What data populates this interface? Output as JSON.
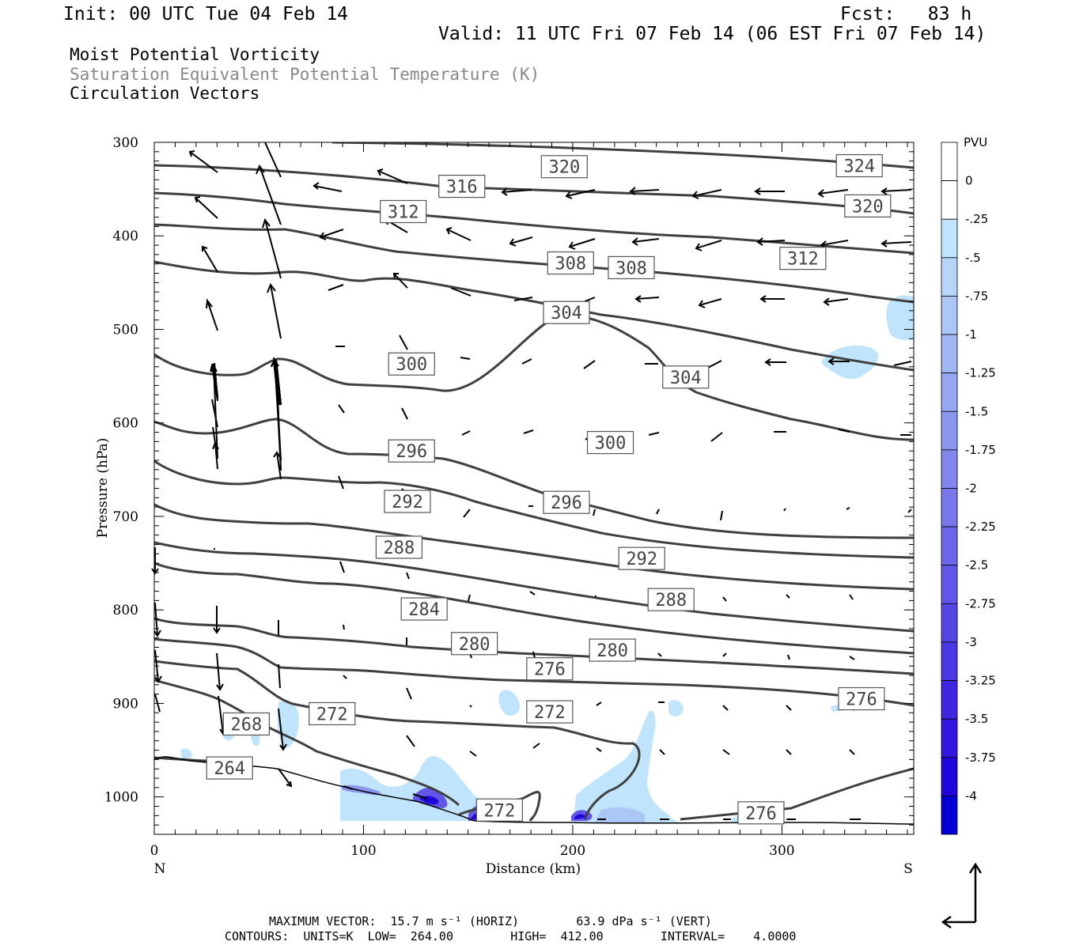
{
  "header": {
    "init": "Init: 00 UTC Tue 04 Feb 14",
    "fcst": "Fcst:   83 h",
    "valid": "Valid: 11 UTC Fri 07 Feb 14 (06 EST Fri 07 Feb 14)"
  },
  "legend_lines": [
    "Moist Potential Vorticity",
    "Saturation Equivalent Potential Temperature (K)",
    "Circulation Vectors"
  ],
  "footer": {
    "line1": "MAXIMUM VECTOR:  15.7 m s⁻¹ (HORIZ)        63.9 dPa s⁻¹ (VERT)",
    "line2": "CONTOURS:  UNITS=K  LOW=  264.00        HIGH=  412.00        INTERVAL=    4.0000"
  },
  "chart_data": {
    "type": "contour",
    "xlabel": "Distance (km)",
    "ylabel": "Pressure (hPa)",
    "x_end_labels": {
      "left": "N",
      "right": "S"
    },
    "xlim": [
      0,
      363
    ],
    "ylim": [
      1040,
      300
    ],
    "x_ticks": [
      0,
      100,
      200,
      300
    ],
    "y_ticks": [
      300,
      400,
      500,
      600,
      700,
      800,
      900,
      1000
    ],
    "colorbar": {
      "title": "PVU",
      "labels": [
        "0",
        "-.25",
        "-.5",
        "-.75",
        "-1",
        "-1.25",
        "-1.5",
        "-1.75",
        "-2",
        "-2.25",
        "-2.5",
        "-2.75",
        "-3",
        "-3.25",
        "-3.5",
        "-3.75",
        "-4"
      ],
      "colors": [
        "#ffffff",
        "#ffffff",
        "#bfe4fb",
        "#b6d6f8",
        "#acc7f6",
        "#a1b7f4",
        "#97a7f2",
        "#8c96ef",
        "#8286ed",
        "#7776eb",
        "#6c66e9",
        "#6156e7",
        "#5646e5",
        "#4b36e3",
        "#3f26e1",
        "#3316df",
        "#2006dc",
        "#0000d6"
      ]
    },
    "contour_labels": [
      {
        "value": "320",
        "x": 196,
        "p": 326
      },
      {
        "value": "324",
        "x": 337,
        "p": 325
      },
      {
        "value": "316",
        "x": 147,
        "p": 347
      },
      {
        "value": "320",
        "x": 341,
        "p": 368
      },
      {
        "value": "312",
        "x": 119,
        "p": 374
      },
      {
        "value": "312",
        "x": 310,
        "p": 424
      },
      {
        "value": "308",
        "x": 199,
        "p": 429
      },
      {
        "value": "308",
        "x": 228,
        "p": 434
      },
      {
        "value": "304",
        "x": 197,
        "p": 482
      },
      {
        "value": "304",
        "x": 254,
        "p": 551
      },
      {
        "value": "300",
        "x": 123,
        "p": 537
      },
      {
        "value": "300",
        "x": 218,
        "p": 621
      },
      {
        "value": "296",
        "x": 123,
        "p": 630
      },
      {
        "value": "296",
        "x": 197,
        "p": 685
      },
      {
        "value": "292",
        "x": 121,
        "p": 684
      },
      {
        "value": "292",
        "x": 233,
        "p": 745
      },
      {
        "value": "288",
        "x": 117,
        "p": 733
      },
      {
        "value": "288",
        "x": 247,
        "p": 789
      },
      {
        "value": "284",
        "x": 129,
        "p": 799
      },
      {
        "value": "280",
        "x": 153,
        "p": 836
      },
      {
        "value": "280",
        "x": 219,
        "p": 843
      },
      {
        "value": "276",
        "x": 189,
        "p": 863
      },
      {
        "value": "276",
        "x": 338,
        "p": 895
      },
      {
        "value": "272",
        "x": 85,
        "p": 911
      },
      {
        "value": "272",
        "x": 189,
        "p": 909
      },
      {
        "value": "272",
        "x": 165,
        "p": 1014
      },
      {
        "value": "268",
        "x": 44,
        "p": 922
      },
      {
        "value": "264",
        "x": 36,
        "p": 969
      },
      {
        "value": "276",
        "x": 290,
        "p": 1017
      }
    ]
  }
}
